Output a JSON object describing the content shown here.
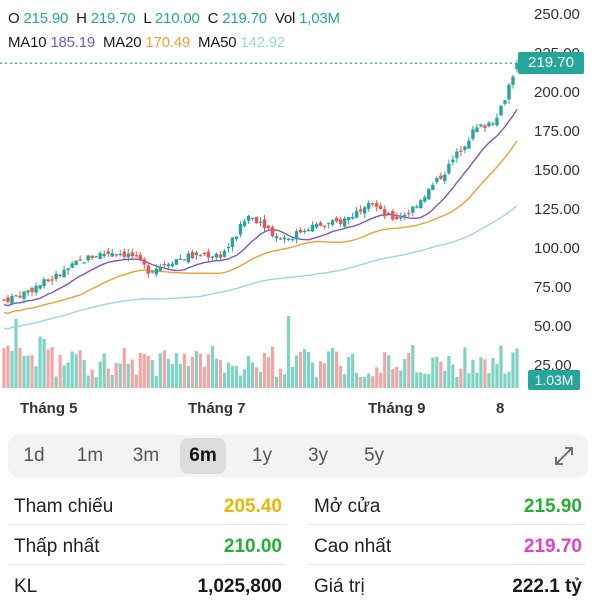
{
  "legend": {
    "ohlc": [
      {
        "key": "O",
        "value": "215.90"
      },
      {
        "key": "H",
        "value": "219.70"
      },
      {
        "key": "L",
        "value": "210.00"
      },
      {
        "key": "C",
        "value": "219.70"
      },
      {
        "key": "Vol",
        "value": "1,03M"
      }
    ],
    "ma": [
      {
        "key": "MA10",
        "value": "185.19"
      },
      {
        "key": "MA20",
        "value": "170.49"
      },
      {
        "key": "MA50",
        "value": "142.92"
      }
    ]
  },
  "colors": {
    "up": "#26a69a",
    "down": "#ef5350",
    "vol_up": "#7fd3c4",
    "vol_down": "#f4a6a4",
    "ma10": "#7e57c2",
    "ma20": "#f0a030",
    "ma50": "#9ad4f0",
    "ref": "#e6b800",
    "green": "#22b030",
    "magenta": "#e040d0"
  },
  "chart_data": {
    "type": "candlestick",
    "y_ticks": [
      "250.00",
      "225.00",
      "200.00",
      "175.00",
      "150.00",
      "125.00",
      "100.00",
      "75.00",
      "50.00",
      "25.00"
    ],
    "ylim": [
      25,
      250
    ],
    "x_labels": [
      "Tháng 5",
      "Tháng 7",
      "Tháng 9",
      "8"
    ],
    "last_price_label": "219.70",
    "last_volume_label": "1.03M",
    "last_price": 219.7,
    "anchors": [
      [
        0,
        68
      ],
      [
        10,
        72
      ],
      [
        20,
        78
      ],
      [
        30,
        84
      ],
      [
        40,
        92
      ],
      [
        50,
        97
      ],
      [
        60,
        99
      ],
      [
        70,
        96
      ],
      [
        78,
        87
      ],
      [
        85,
        90
      ],
      [
        90,
        93
      ],
      [
        100,
        96
      ],
      [
        110,
        97
      ],
      [
        118,
        97
      ],
      [
        125,
        108
      ],
      [
        132,
        122
      ],
      [
        140,
        118
      ],
      [
        148,
        108
      ],
      [
        155,
        108
      ],
      [
        165,
        115
      ],
      [
        175,
        116
      ],
      [
        182,
        118
      ],
      [
        190,
        123
      ],
      [
        198,
        133
      ],
      [
        205,
        123
      ],
      [
        212,
        120
      ],
      [
        220,
        125
      ],
      [
        230,
        138
      ],
      [
        240,
        152
      ],
      [
        247,
        164
      ],
      [
        255,
        177
      ],
      [
        262,
        181
      ],
      [
        265,
        183
      ],
      [
        270,
        193
      ],
      [
        275,
        210
      ],
      [
        278,
        219.7
      ]
    ]
  },
  "range_tabs": [
    "1d",
    "1m",
    "3m",
    "6m",
    "1y",
    "3y",
    "5y"
  ],
  "range_active": 3,
  "stats": [
    {
      "label": "Tham chiếu",
      "value": "205.40",
      "color": "#e6b800"
    },
    {
      "label": "Mở cửa",
      "value": "215.90",
      "color": "#22b030"
    },
    {
      "label": "Thấp nhất",
      "value": "210.00",
      "color": "#22b030"
    },
    {
      "label": "Cao nhất",
      "value": "219.70",
      "color": "#e040d0"
    },
    {
      "label": "KL",
      "value": "1,025,800",
      "color": "#1a1a1a"
    },
    {
      "label": "Giá trị",
      "value": "222.1 tỷ",
      "color": "#1a1a1a"
    }
  ]
}
